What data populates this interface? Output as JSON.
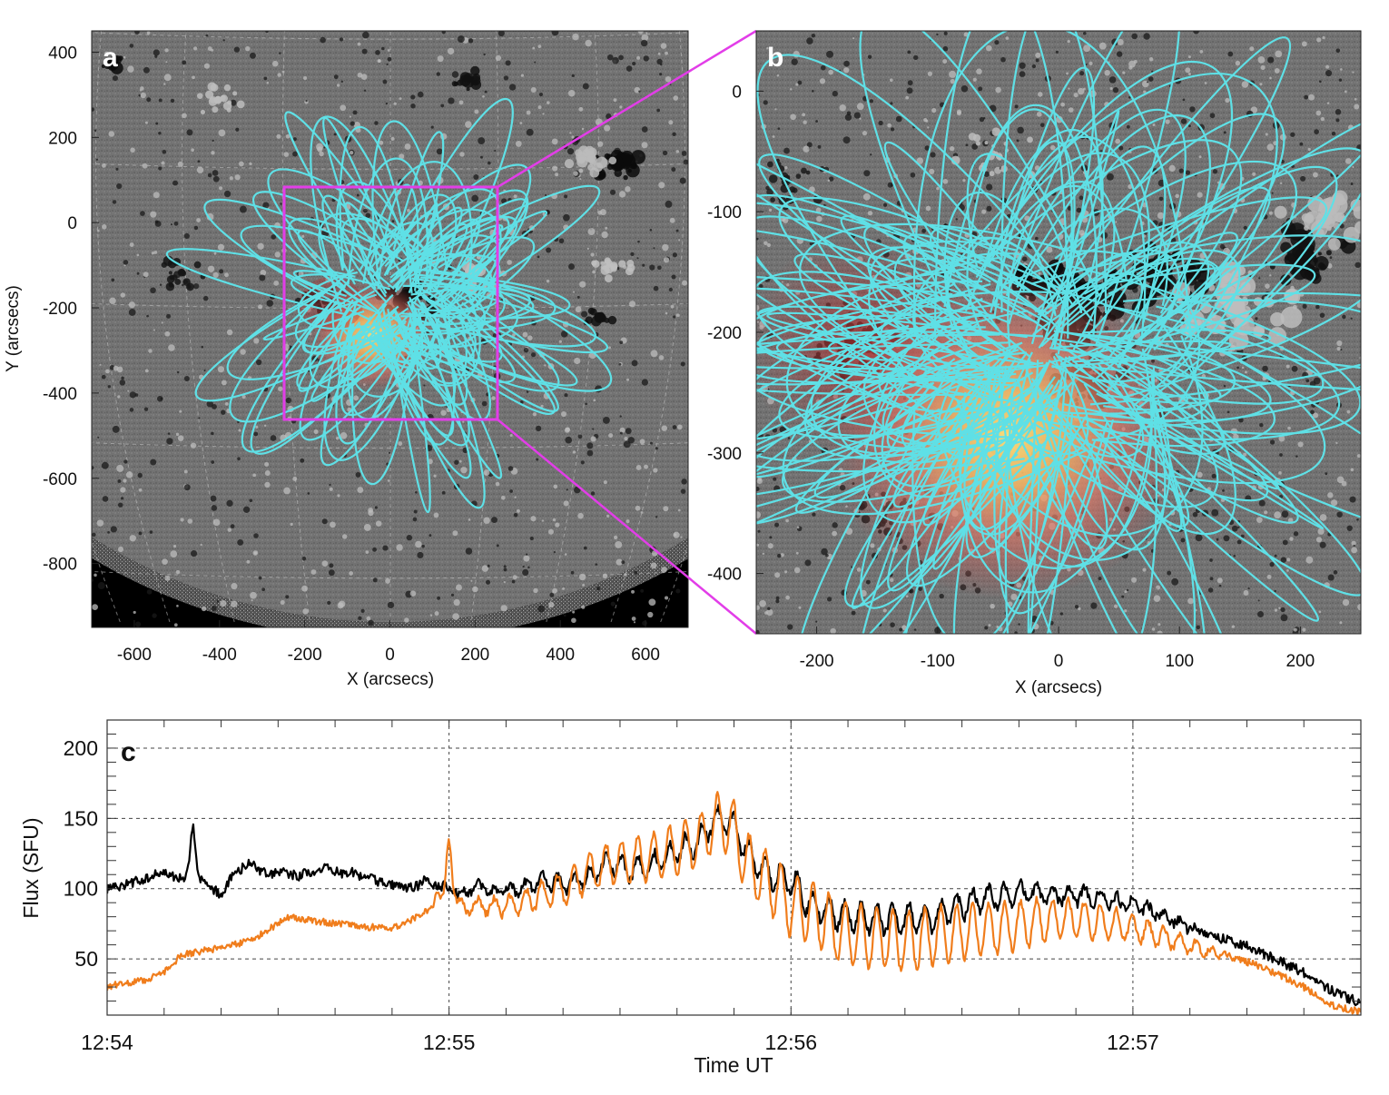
{
  "panels": {
    "a": {
      "label": "a",
      "xlabel": "X (arcsecs)",
      "ylabel": "Y (arcsecs)",
      "xlim": [
        -700,
        700
      ],
      "ylim": [
        -950,
        450
      ],
      "xticks": [
        -600,
        -400,
        -200,
        0,
        200,
        400,
        600
      ],
      "yticks": [
        400,
        200,
        0,
        -200,
        -400,
        -600,
        -800
      ],
      "zoom_box": {
        "x": [
          -250,
          250
        ],
        "y": [
          -465,
          80
        ]
      }
    },
    "b": {
      "label": "b",
      "xlabel": "X (arcsecs)",
      "xlim": [
        -250,
        250
      ],
      "ylim": [
        -450,
        50
      ],
      "xticks": [
        -200,
        -100,
        0,
        100,
        200
      ],
      "yticks": [
        0,
        -100,
        -200,
        -300,
        -400
      ]
    }
  },
  "colors": {
    "field_lines": "#5fe0e6",
    "zoom_box": "#e23de8",
    "series_black": "#000000",
    "series_orange": "#f07d1c",
    "background_gray": "#6f6f6f"
  },
  "chart_data": {
    "type": "line",
    "label": "c",
    "xlabel": "Time UT",
    "ylabel": "Flux (SFU)",
    "xlim": [
      0,
      220
    ],
    "ylim": [
      10,
      220
    ],
    "xticks": [
      {
        "value": 0,
        "label": "12:54"
      },
      {
        "value": 60,
        "label": "12:55"
      },
      {
        "value": 120,
        "label": "12:56"
      },
      {
        "value": 180,
        "label": "12:57"
      }
    ],
    "yticks": [
      50,
      100,
      150,
      200
    ],
    "grid": true,
    "series": [
      {
        "color": "#000000",
        "anchors": [
          [
            0,
            100
          ],
          [
            5,
            105
          ],
          [
            10,
            112
          ],
          [
            14,
            105
          ],
          [
            15,
            112
          ],
          [
            20,
            95
          ],
          [
            22,
            110
          ],
          [
            25,
            118
          ],
          [
            28,
            110
          ],
          [
            30,
            112
          ],
          [
            35,
            108
          ],
          [
            38,
            115
          ],
          [
            42,
            110
          ],
          [
            46,
            107
          ],
          [
            50,
            103
          ],
          [
            53,
            101
          ],
          [
            56,
            103
          ],
          [
            60,
            101
          ],
          [
            62,
            95
          ],
          [
            65,
            103
          ],
          [
            68,
            97
          ],
          [
            72,
            100
          ],
          [
            76,
            106
          ],
          [
            80,
            103
          ],
          [
            84,
            107
          ],
          [
            88,
            118
          ],
          [
            92,
            113
          ],
          [
            96,
            118
          ],
          [
            100,
            127
          ],
          [
            104,
            133
          ],
          [
            106,
            148
          ],
          [
            108,
            150
          ],
          [
            110,
            145
          ],
          [
            112,
            128
          ],
          [
            115,
            113
          ],
          [
            118,
            108
          ],
          [
            120,
            106
          ],
          [
            123,
            90
          ],
          [
            128,
            82
          ],
          [
            132,
            80
          ],
          [
            136,
            78
          ],
          [
            140,
            79
          ],
          [
            144,
            78
          ],
          [
            147,
            82
          ],
          [
            150,
            88
          ],
          [
            154,
            93
          ],
          [
            158,
            95
          ],
          [
            162,
            97
          ],
          [
            166,
            96
          ],
          [
            170,
            95
          ],
          [
            174,
            93
          ],
          [
            178,
            90
          ],
          [
            182,
            86
          ],
          [
            186,
            80
          ],
          [
            190,
            72
          ],
          [
            195,
            66
          ],
          [
            200,
            59
          ],
          [
            205,
            50
          ],
          [
            210,
            40
          ],
          [
            215,
            27
          ],
          [
            218,
            22
          ],
          [
            220,
            19
          ]
        ],
        "spikes": [
          [
            14,
            4
          ],
          [
            15,
            32
          ],
          [
            35,
            4
          ],
          [
            43,
            3
          ],
          [
            56,
            4
          ]
        ]
      },
      {
        "color": "#f07d1c",
        "anchors": [
          [
            0,
            30
          ],
          [
            3,
            33
          ],
          [
            6,
            34
          ],
          [
            10,
            40
          ],
          [
            13,
            53
          ],
          [
            16,
            55
          ],
          [
            20,
            58
          ],
          [
            25,
            63
          ],
          [
            28,
            70
          ],
          [
            30,
            75
          ],
          [
            32,
            80
          ],
          [
            35,
            78
          ],
          [
            40,
            75
          ],
          [
            45,
            73
          ],
          [
            50,
            72
          ],
          [
            52,
            75
          ],
          [
            55,
            82
          ],
          [
            58,
            88
          ],
          [
            60,
            100
          ],
          [
            62,
            90
          ],
          [
            65,
            88
          ],
          [
            68,
            87
          ],
          [
            70,
            88
          ],
          [
            73,
            90
          ],
          [
            76,
            95
          ],
          [
            80,
            100
          ],
          [
            84,
            110
          ],
          [
            88,
            118
          ],
          [
            92,
            120
          ],
          [
            96,
            122
          ],
          [
            100,
            128
          ],
          [
            104,
            134
          ],
          [
            106,
            145
          ],
          [
            108,
            148
          ],
          [
            110,
            142
          ],
          [
            112,
            120
          ],
          [
            115,
            108
          ],
          [
            118,
            98
          ],
          [
            120,
            88
          ],
          [
            122,
            86
          ],
          [
            124,
            84
          ],
          [
            128,
            70
          ],
          [
            132,
            66
          ],
          [
            136,
            65
          ],
          [
            140,
            62
          ],
          [
            144,
            65
          ],
          [
            148,
            68
          ],
          [
            152,
            70
          ],
          [
            156,
            72
          ],
          [
            160,
            74
          ],
          [
            164,
            77
          ],
          [
            168,
            78
          ],
          [
            172,
            77
          ],
          [
            176,
            75
          ],
          [
            180,
            72
          ],
          [
            186,
            65
          ],
          [
            190,
            59
          ],
          [
            195,
            54
          ],
          [
            200,
            48
          ],
          [
            205,
            40
          ],
          [
            210,
            30
          ],
          [
            215,
            17
          ],
          [
            218,
            14
          ],
          [
            220,
            12
          ]
        ],
        "spikes": [
          [
            58,
            10
          ],
          [
            60,
            34
          ],
          [
            63,
            -6
          ]
        ]
      }
    ]
  }
}
